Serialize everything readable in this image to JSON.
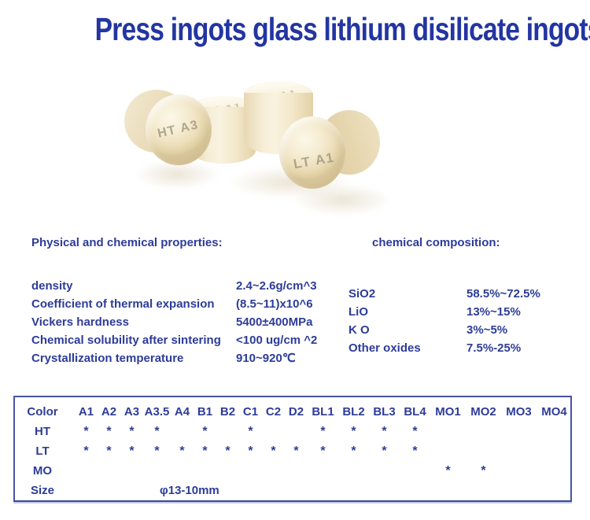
{
  "title": "Press ingots glass lithium disilicate ingots",
  "hero": {
    "labels": {
      "front_left": "HT A3",
      "middle_top": "LT A1",
      "right_top": "LT A1",
      "front_right": "LT A1"
    }
  },
  "properties": {
    "heading": "Physical and chemical properties:",
    "rows": [
      {
        "label": "density",
        "value": "2.4~2.6g/cm^3"
      },
      {
        "label": "Coefficient of thermal expansion",
        "value": "(8.5~11)x10^6"
      },
      {
        "label": "Vickers hardness",
        "value": "5400±400MPa"
      },
      {
        "label": "Chemical solubility after sintering",
        "value": "<100 ug/cm ^2"
      },
      {
        "label": "Crystallization temperature",
        "value": "910~920℃"
      }
    ]
  },
  "composition": {
    "heading": "chemical composition:",
    "rows": [
      {
        "label": "SiO2",
        "value": "58.5%~72.5%"
      },
      {
        "label": "LiO",
        "value": "13%~15%"
      },
      {
        "label": "K O",
        "value": "3%~5%"
      },
      {
        "label": "Other oxides",
        "value": "7.5%-25%"
      }
    ]
  },
  "color_table": {
    "header_label": "Color",
    "columns": [
      "A1",
      "A2",
      "A3",
      "A3.5",
      "A4",
      "B1",
      "B2",
      "C1",
      "C2",
      "D2",
      "BL1",
      "BL2",
      "BL3",
      "BL4",
      "MO1",
      "MO2",
      "MO3",
      "MO4"
    ],
    "rows": [
      {
        "label": "HT",
        "marks": [
          1,
          1,
          1,
          1,
          0,
          1,
          0,
          1,
          0,
          0,
          1,
          1,
          1,
          1,
          0,
          0,
          0,
          0
        ]
      },
      {
        "label": "LT",
        "marks": [
          1,
          1,
          1,
          1,
          1,
          1,
          1,
          1,
          1,
          1,
          1,
          1,
          1,
          1,
          0,
          0,
          0,
          0
        ]
      },
      {
        "label": "MO",
        "marks": [
          0,
          0,
          0,
          0,
          0,
          0,
          0,
          0,
          0,
          0,
          0,
          0,
          0,
          0,
          1,
          1,
          0,
          0
        ]
      }
    ],
    "mark_glyph": "*",
    "size_label": "Size",
    "size_value": "φ13-10mm"
  },
  "colors": {
    "title_blue": "#2335a2",
    "text_blue": "#2d3c98",
    "table_border": "#4753a6",
    "ingot_cream": "#f5ecd2",
    "ingot_shadow": "#ddcba1",
    "ingot_text": "#a39a82"
  }
}
